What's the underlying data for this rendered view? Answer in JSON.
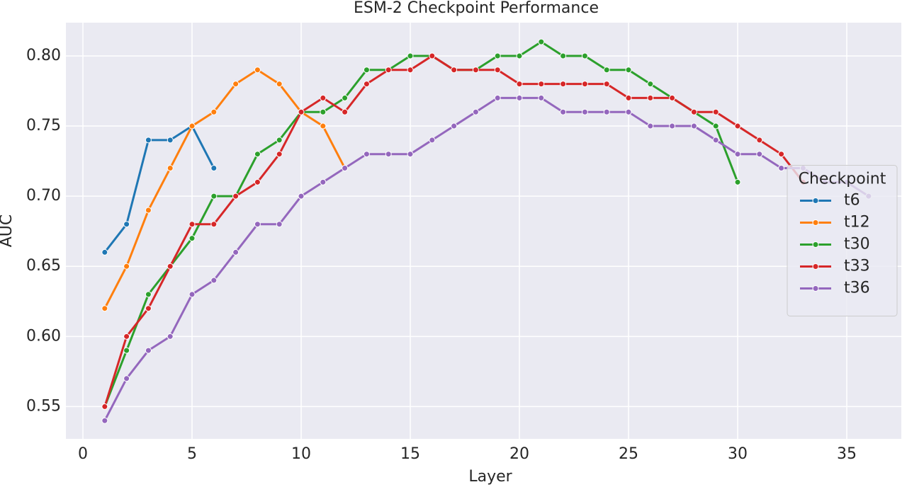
{
  "chart_data": {
    "type": "line",
    "title": "ESM-2 Checkpoint Performance",
    "x_label": "Layer",
    "y_label": "AUC",
    "xlim": [
      -0.78,
      37.5
    ],
    "ylim": [
      0.527,
      0.8237
    ],
    "xticks": [
      0,
      5,
      10,
      15,
      20,
      25,
      30,
      35
    ],
    "yticks": [
      {
        "value": 0.55,
        "label": "0.55"
      },
      {
        "value": 0.6,
        "label": "0.60"
      },
      {
        "value": 0.65,
        "label": "0.65"
      },
      {
        "value": 0.7,
        "label": "0.70"
      },
      {
        "value": 0.75,
        "label": "0.75"
      },
      {
        "value": 0.8,
        "label": "0.80"
      }
    ],
    "grid": true,
    "legend_title": "Checkpoint",
    "legend_position": "center right",
    "series": [
      {
        "name": "t6",
        "color": "#1f77b4",
        "x": [
          1,
          2,
          3,
          4,
          5,
          6
        ],
        "values": [
          0.66,
          0.68,
          0.74,
          0.74,
          0.75,
          0.72
        ]
      },
      {
        "name": "t12",
        "color": "#ff7f0e",
        "x": [
          1,
          2,
          3,
          4,
          5,
          6,
          7,
          8,
          9,
          10,
          11,
          12
        ],
        "values": [
          0.62,
          0.65,
          0.69,
          0.72,
          0.75,
          0.76,
          0.78,
          0.79,
          0.78,
          0.76,
          0.75,
          0.72
        ]
      },
      {
        "name": "t30",
        "color": "#2ca02c",
        "x": [
          1,
          2,
          3,
          4,
          5,
          6,
          7,
          8,
          9,
          10,
          11,
          12,
          13,
          14,
          15,
          16,
          17,
          18,
          19,
          20,
          21,
          22,
          23,
          24,
          25,
          26,
          27,
          28,
          29,
          30
        ],
        "values": [
          0.55,
          0.59,
          0.63,
          0.65,
          0.67,
          0.7,
          0.7,
          0.73,
          0.74,
          0.76,
          0.76,
          0.77,
          0.79,
          0.79,
          0.8,
          0.8,
          0.79,
          0.79,
          0.8,
          0.8,
          0.81,
          0.8,
          0.8,
          0.79,
          0.79,
          0.78,
          0.77,
          0.76,
          0.75,
          0.71
        ]
      },
      {
        "name": "t33",
        "color": "#d62728",
        "x": [
          1,
          2,
          3,
          4,
          5,
          6,
          7,
          8,
          9,
          10,
          11,
          12,
          13,
          14,
          15,
          16,
          17,
          18,
          19,
          20,
          21,
          22,
          23,
          24,
          25,
          26,
          27,
          28,
          29,
          30,
          31,
          32,
          33
        ],
        "values": [
          0.55,
          0.6,
          0.62,
          0.65,
          0.68,
          0.68,
          0.7,
          0.71,
          0.73,
          0.76,
          0.77,
          0.76,
          0.78,
          0.79,
          0.79,
          0.8,
          0.79,
          0.79,
          0.79,
          0.78,
          0.78,
          0.78,
          0.78,
          0.78,
          0.77,
          0.77,
          0.77,
          0.76,
          0.76,
          0.75,
          0.74,
          0.73,
          0.71
        ]
      },
      {
        "name": "t36",
        "color": "#9467bd",
        "x": [
          1,
          2,
          3,
          4,
          5,
          6,
          7,
          8,
          9,
          10,
          11,
          12,
          13,
          14,
          15,
          16,
          17,
          18,
          19,
          20,
          21,
          22,
          23,
          24,
          25,
          26,
          27,
          28,
          29,
          30,
          31,
          32,
          33,
          34,
          35,
          36
        ],
        "values": [
          0.54,
          0.57,
          0.59,
          0.6,
          0.63,
          0.64,
          0.66,
          0.68,
          0.68,
          0.7,
          0.71,
          0.72,
          0.73,
          0.73,
          0.73,
          0.74,
          0.75,
          0.76,
          0.77,
          0.77,
          0.77,
          0.76,
          0.76,
          0.76,
          0.76,
          0.75,
          0.75,
          0.75,
          0.74,
          0.73,
          0.73,
          0.72,
          0.72,
          0.71,
          0.71,
          0.7
        ]
      }
    ]
  }
}
